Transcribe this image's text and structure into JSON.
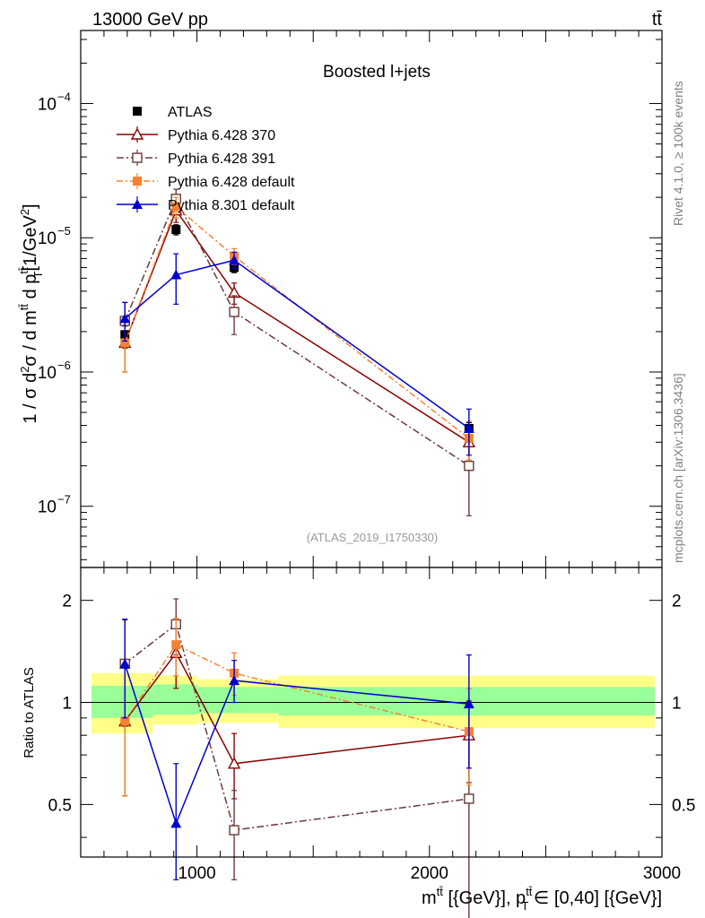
{
  "header": {
    "left": "13000 GeV pp",
    "right": "tt̄"
  },
  "side_labels": {
    "rivet": "Rivet 4.1.0, ≥ 100k events",
    "source": "mcplots.cern.ch [arXiv:1306.3436]"
  },
  "chart_data": [
    {
      "type": "line",
      "panel": "main",
      "title": "Boosted l+jets",
      "annotation": "(ATLAS_2019_I1750330)",
      "ylabel": "1 / σ d²σ / d m^{tt̄} d p_T^{tt̄} [1/GeV²]",
      "yscale": "log",
      "xlim": [
        500,
        3000
      ],
      "ylim": [
        3.5e-08,
        0.00035
      ],
      "y_ticks": [
        {
          "value": 1e-07,
          "label": "10",
          "exp": "−7"
        },
        {
          "value": 1e-06,
          "label": "10",
          "exp": "−6"
        },
        {
          "value": 1e-05,
          "label": "10",
          "exp": "−5"
        },
        {
          "value": 0.0001,
          "label": "10",
          "exp": "−4"
        }
      ],
      "legend": {
        "placement": "top-left"
      },
      "series": [
        {
          "name": "ATLAS",
          "color": "#000000",
          "marker": "square-filled",
          "dash": "",
          "line": false,
          "points": [
            {
              "x": 690,
              "y": 1.9e-06,
              "lo": 1.6e-06,
              "hi": 2.2e-06
            },
            {
              "x": 910,
              "y": 1.15e-05,
              "lo": 1.05e-05,
              "hi": 1.25e-05
            },
            {
              "x": 1160,
              "y": 6e-06,
              "lo": 5.5e-06,
              "hi": 6.5e-06
            },
            {
              "x": 2170,
              "y": 3.8e-07,
              "lo": 3.4e-07,
              "hi": 4.2e-07
            }
          ]
        },
        {
          "name": "Pythia 6.428 370",
          "color": "#8b0000",
          "marker": "triangle-open",
          "dash": "",
          "line": true,
          "points": [
            {
              "x": 690,
              "y": 1.65e-06,
              "lo": 1e-06,
              "hi": 2.4e-06
            },
            {
              "x": 910,
              "y": 1.6e-05,
              "lo": 1.3e-05,
              "hi": 1.9e-05
            },
            {
              "x": 1160,
              "y": 3.9e-06,
              "lo": 3.2e-06,
              "hi": 4.6e-06
            },
            {
              "x": 2170,
              "y": 3e-07,
              "lo": 2.2e-07,
              "hi": 3.8e-07
            }
          ]
        },
        {
          "name": "Pythia 6.428 391",
          "color": "#6b3a3a",
          "marker": "square-open",
          "dash": "8 3 2 3",
          "line": true,
          "points": [
            {
              "x": 690,
              "y": 2.4e-06,
              "lo": 1.5e-06,
              "hi": 3.3e-06
            },
            {
              "x": 910,
              "y": 1.95e-05,
              "lo": 1.6e-05,
              "hi": 2.3e-05
            },
            {
              "x": 1160,
              "y": 2.8e-06,
              "lo": 1.9e-06,
              "hi": 3.7e-06
            },
            {
              "x": 2170,
              "y": 2e-07,
              "lo": 8.5e-08,
              "hi": 3.2e-07
            }
          ]
        },
        {
          "name": "Pythia 6.428 default",
          "color": "#f58231",
          "marker": "square-filled",
          "dash": "7 3 2 3",
          "line": true,
          "points": [
            {
              "x": 690,
              "y": 1.65e-06,
              "lo": 1e-06,
              "hi": 2.4e-06
            },
            {
              "x": 910,
              "y": 1.7e-05,
              "lo": 1.4e-05,
              "hi": 2e-05
            },
            {
              "x": 1160,
              "y": 7.3e-06,
              "lo": 6.3e-06,
              "hi": 8.3e-06
            },
            {
              "x": 2170,
              "y": 3.2e-07,
              "lo": 2.2e-07,
              "hi": 4.3e-07
            }
          ]
        },
        {
          "name": "Pythia 8.301 default",
          "color": "#0000cd",
          "marker": "triangle-filled",
          "dash": "",
          "line": true,
          "points": [
            {
              "x": 690,
              "y": 2.5e-06,
              "lo": 1.7e-06,
              "hi": 3.3e-06
            },
            {
              "x": 910,
              "y": 5.3e-06,
              "lo": 3.2e-06,
              "hi": 7.6e-06
            },
            {
              "x": 1160,
              "y": 6.8e-06,
              "lo": 5.9e-06,
              "hi": 7.8e-06
            },
            {
              "x": 2170,
              "y": 3.8e-07,
              "lo": 2.4e-07,
              "hi": 5.3e-07
            }
          ]
        }
      ]
    },
    {
      "type": "line",
      "panel": "ratio",
      "ylabel": "Ratio to ATLAS",
      "xlabel": "m^{tt̄} [{GeV}], p_T^{tt̄} ∈ [0,40] [{GeV}]",
      "yscale": "log",
      "xlim": [
        500,
        3000
      ],
      "ylim": [
        0.35,
        2.5
      ],
      "x_ticks": [
        {
          "value": 1000,
          "label": "1000"
        },
        {
          "value": 2000,
          "label": "2000"
        },
        {
          "value": 3000,
          "label": "3000"
        }
      ],
      "y_ticks": [
        {
          "value": 0.5,
          "label": "0.5"
        },
        {
          "value": 1,
          "label": "1"
        },
        {
          "value": 2,
          "label": "2"
        }
      ],
      "bands": [
        {
          "x0": 500,
          "x1": 810,
          "inner": [
            0.9,
            1.12
          ],
          "outer": [
            0.81,
            1.22
          ]
        },
        {
          "x0": 810,
          "x1": 1000,
          "inner": [
            0.92,
            1.13
          ],
          "outer": [
            0.86,
            1.2
          ]
        },
        {
          "x0": 1000,
          "x1": 1350,
          "inner": [
            0.93,
            1.11
          ],
          "outer": [
            0.87,
            1.17
          ]
        },
        {
          "x0": 1350,
          "x1": 3000,
          "inner": [
            0.915,
            1.11
          ],
          "outer": [
            0.84,
            1.2
          ]
        }
      ],
      "band_colors": {
        "inner": "#99ff99",
        "outer": "#ffff88"
      },
      "series": [
        {
          "name": "Pythia 6.428 370",
          "color": "#8b0000",
          "marker": "triangle-open",
          "dash": "",
          "points": [
            {
              "x": 690,
              "y": 0.88,
              "lo": 0.53,
              "hi": 1.3
            },
            {
              "x": 910,
              "y": 1.4,
              "lo": 1.1,
              "hi": 1.7
            },
            {
              "x": 1160,
              "y": 0.66,
              "lo": 0.52,
              "hi": 0.81
            },
            {
              "x": 2170,
              "y": 0.8,
              "lo": 0.58,
              "hi": 1.01
            }
          ]
        },
        {
          "name": "Pythia 6.428 391",
          "color": "#6b3a3a",
          "marker": "square-open",
          "dash": "8 3 2 3",
          "points": [
            {
              "x": 690,
              "y": 1.3,
              "lo": 0.85,
              "hi": 1.75
            },
            {
              "x": 910,
              "y": 1.7,
              "lo": 1.38,
              "hi": 2.02
            },
            {
              "x": 1160,
              "y": 0.42,
              "lo": 0.3,
              "hi": 0.55
            },
            {
              "x": 2170,
              "y": 0.52,
              "lo": 0.22,
              "hi": 0.82
            }
          ]
        },
        {
          "name": "Pythia 6.428 default",
          "color": "#f58231",
          "marker": "square-filled",
          "dash": "7 3 2 3",
          "points": [
            {
              "x": 690,
              "y": 0.88,
              "lo": 0.53,
              "hi": 1.3
            },
            {
              "x": 910,
              "y": 1.48,
              "lo": 1.2,
              "hi": 1.77
            },
            {
              "x": 1160,
              "y": 1.22,
              "lo": 1.05,
              "hi": 1.4
            },
            {
              "x": 2170,
              "y": 0.82,
              "lo": 0.57,
              "hi": 1.1
            }
          ]
        },
        {
          "name": "Pythia 8.301 default",
          "color": "#0000cd",
          "marker": "triangle-filled",
          "dash": "",
          "points": [
            {
              "x": 690,
              "y": 1.3,
              "lo": 0.9,
              "hi": 1.76
            },
            {
              "x": 910,
              "y": 0.44,
              "lo": 0.3,
              "hi": 0.66
            },
            {
              "x": 1160,
              "y": 1.16,
              "lo": 1.0,
              "hi": 1.33
            },
            {
              "x": 2170,
              "y": 0.99,
              "lo": 0.64,
              "hi": 1.38
            }
          ]
        }
      ]
    }
  ]
}
